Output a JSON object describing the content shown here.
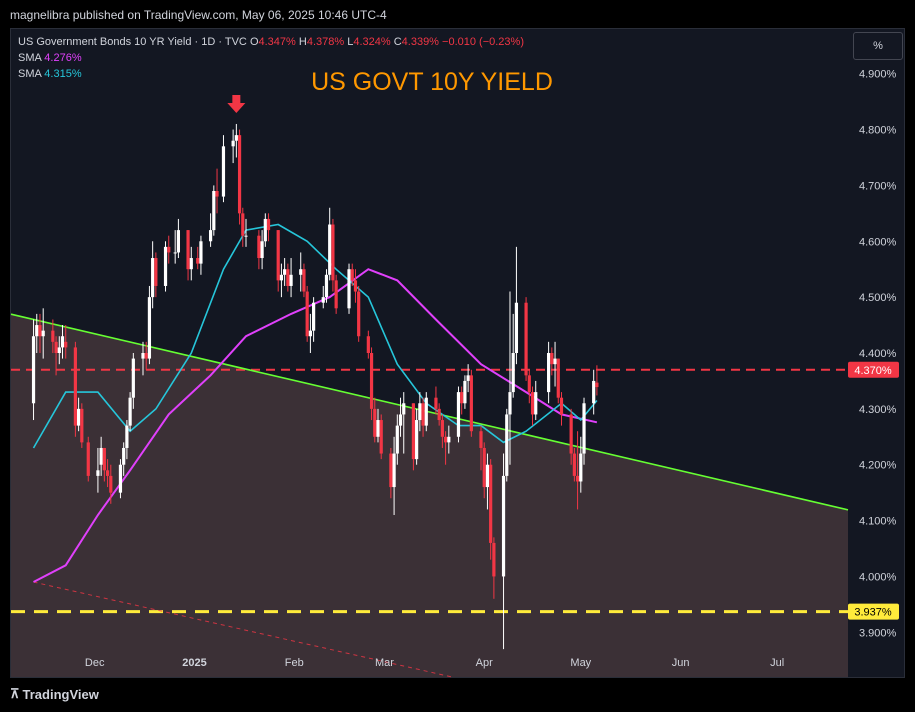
{
  "publish_bar": "magnelibra published on TradingView.com, May 06, 2025 10:46 UTC-4",
  "footer": {
    "brand": "TradingView"
  },
  "unit_label": "%",
  "legend": {
    "symbol": "US Government Bonds 10 YR Yield · 1D · TVC",
    "o_label": "O",
    "o_val": "4.347%",
    "h_label": "H",
    "h_val": "4.378%",
    "l_label": "L",
    "l_val": "4.324%",
    "c_label": "C",
    "c_val": "4.339%",
    "change": "−0.010 (−0.23%)",
    "sma1_label": "SMA",
    "sma1_val": "4.276%",
    "sma2_label": "SMA",
    "sma2_val": "4.315%"
  },
  "colors": {
    "up": "#ffffff",
    "down": "#f23645",
    "sma_slow": "#e040fb",
    "sma_fast": "#26c6da",
    "trendline": "#66ff33",
    "resistance": "#f23645",
    "support": "#ffeb3b",
    "title": "#ff9800",
    "shade": "#4a3a3e"
  },
  "chart_data": {
    "type": "candlestick",
    "title": "US GOVT 10Y YIELD",
    "y_axis": {
      "min": 3.82,
      "max": 4.98,
      "ticks": [
        "4.900%",
        "4.800%",
        "4.700%",
        "4.600%",
        "4.500%",
        "4.400%",
        "4.300%",
        "4.200%",
        "4.100%",
        "4.000%",
        "3.900%"
      ]
    },
    "x_axis": {
      "ticks": [
        "Dec",
        "2025",
        "Feb",
        "Mar",
        "Apr",
        "May",
        "Jun",
        "Jul"
      ]
    },
    "price_tags": [
      {
        "value": 4.37,
        "label": "4.370%",
        "color": "#f23645"
      },
      {
        "value": 3.937,
        "label": "3.937%",
        "color": "#ffeb3b"
      }
    ],
    "horizontal_lines": [
      {
        "value": 4.37,
        "style": "dashed",
        "color": "#f23645"
      },
      {
        "value": 3.937,
        "style": "dashed",
        "color": "#ffeb3b"
      }
    ],
    "trendline": {
      "from": {
        "date": "2024-11-12",
        "value": 4.46
      },
      "to": {
        "date": "2025-07-15",
        "value": 4.13
      }
    },
    "secondary_trendline": {
      "from": {
        "date": "2024-11-12",
        "value": 3.99
      },
      "to": {
        "date": "2025-03-22",
        "value": 3.82
      }
    },
    "marker": {
      "type": "down-arrow",
      "date": "2025-01-14",
      "color": "#f23645"
    },
    "shaded_zone": "below trendline",
    "grid": false,
    "candles": [
      [
        "2024-11-12",
        4.31,
        4.46,
        4.28,
        4.43
      ],
      [
        "2024-11-13",
        4.43,
        4.47,
        4.4,
        4.45
      ],
      [
        "2024-11-14",
        4.45,
        4.47,
        4.4,
        4.43
      ],
      [
        "2024-11-15",
        4.43,
        4.48,
        4.39,
        4.44
      ],
      [
        "2024-11-18",
        4.44,
        4.46,
        4.4,
        4.42
      ],
      [
        "2024-11-19",
        4.42,
        4.43,
        4.36,
        4.4
      ],
      [
        "2024-11-20",
        4.4,
        4.43,
        4.38,
        4.41
      ],
      [
        "2024-11-21",
        4.41,
        4.45,
        4.39,
        4.43
      ],
      [
        "2024-11-22",
        4.42,
        4.45,
        4.39,
        4.41
      ],
      [
        "2024-11-25",
        4.41,
        4.42,
        4.25,
        4.27
      ],
      [
        "2024-11-26",
        4.27,
        4.32,
        4.26,
        4.3
      ],
      [
        "2024-11-27",
        4.3,
        4.31,
        4.23,
        4.24
      ],
      [
        "2024-11-29",
        4.24,
        4.25,
        4.17,
        4.18
      ],
      [
        "2024-12-02",
        4.18,
        4.23,
        4.15,
        4.19
      ],
      [
        "2024-12-03",
        4.2,
        4.25,
        4.18,
        4.23
      ],
      [
        "2024-12-04",
        4.23,
        4.23,
        4.17,
        4.19
      ],
      [
        "2024-12-05",
        4.19,
        4.21,
        4.16,
        4.18
      ],
      [
        "2024-12-06",
        4.18,
        4.2,
        4.13,
        4.15
      ],
      [
        "2024-12-09",
        4.15,
        4.21,
        4.14,
        4.2
      ],
      [
        "2024-12-10",
        4.2,
        4.24,
        4.18,
        4.23
      ],
      [
        "2024-12-11",
        4.23,
        4.28,
        4.21,
        4.27
      ],
      [
        "2024-12-12",
        4.27,
        4.33,
        4.26,
        4.32
      ],
      [
        "2024-12-13",
        4.32,
        4.4,
        4.3,
        4.39
      ],
      [
        "2024-12-16",
        4.39,
        4.42,
        4.36,
        4.4
      ],
      [
        "2024-12-17",
        4.4,
        4.42,
        4.37,
        4.39
      ],
      [
        "2024-12-18",
        4.39,
        4.52,
        4.38,
        4.5
      ],
      [
        "2024-12-19",
        4.5,
        4.6,
        4.48,
        4.57
      ],
      [
        "2024-12-20",
        4.57,
        4.58,
        4.5,
        4.52
      ],
      [
        "2024-12-23",
        4.52,
        4.6,
        4.51,
        4.59
      ],
      [
        "2024-12-24",
        4.59,
        4.61,
        4.56,
        4.58
      ],
      [
        "2024-12-26",
        4.58,
        4.62,
        4.56,
        4.58
      ],
      [
        "2024-12-27",
        4.58,
        4.64,
        4.57,
        4.62
      ],
      [
        "2024-12-30",
        4.62,
        4.62,
        4.53,
        4.55
      ],
      [
        "2024-12-31",
        4.55,
        4.59,
        4.53,
        4.57
      ],
      [
        "2025-01-02",
        4.57,
        4.59,
        4.55,
        4.56
      ],
      [
        "2025-01-03",
        4.56,
        4.61,
        4.54,
        4.6
      ],
      [
        "2025-01-06",
        4.6,
        4.65,
        4.59,
        4.62
      ],
      [
        "2025-01-07",
        4.62,
        4.7,
        4.61,
        4.69
      ],
      [
        "2025-01-08",
        4.69,
        4.73,
        4.65,
        4.68
      ],
      [
        "2025-01-10",
        4.68,
        4.79,
        4.67,
        4.77
      ],
      [
        "2025-01-13",
        4.77,
        4.8,
        4.74,
        4.78
      ],
      [
        "2025-01-14",
        4.78,
        4.81,
        4.75,
        4.79
      ],
      [
        "2025-01-15",
        4.79,
        4.8,
        4.63,
        4.65
      ],
      [
        "2025-01-16",
        4.65,
        4.66,
        4.59,
        4.61
      ],
      [
        "2025-01-17",
        4.61,
        4.64,
        4.59,
        4.61
      ],
      [
        "2025-01-21",
        4.61,
        4.62,
        4.55,
        4.57
      ],
      [
        "2025-01-22",
        4.57,
        4.62,
        4.55,
        4.6
      ],
      [
        "2025-01-23",
        4.6,
        4.65,
        4.59,
        4.64
      ],
      [
        "2025-01-24",
        4.64,
        4.65,
        4.6,
        4.62
      ],
      [
        "2025-01-27",
        4.62,
        4.62,
        4.51,
        4.53
      ],
      [
        "2025-01-28",
        4.53,
        4.56,
        4.5,
        4.54
      ],
      [
        "2025-01-29",
        4.54,
        4.57,
        4.52,
        4.55
      ],
      [
        "2025-01-30",
        4.55,
        4.56,
        4.51,
        4.52
      ],
      [
        "2025-01-31",
        4.52,
        4.57,
        4.5,
        4.54
      ],
      [
        "2025-02-03",
        4.54,
        4.58,
        4.51,
        4.55
      ],
      [
        "2025-02-04",
        4.55,
        4.56,
        4.5,
        4.51
      ],
      [
        "2025-02-05",
        4.51,
        4.52,
        4.42,
        4.43
      ],
      [
        "2025-02-06",
        4.43,
        4.47,
        4.4,
        4.44
      ],
      [
        "2025-02-07",
        4.44,
        4.5,
        4.42,
        4.49
      ],
      [
        "2025-02-10",
        4.49,
        4.52,
        4.48,
        4.5
      ],
      [
        "2025-02-11",
        4.5,
        4.55,
        4.49,
        4.54
      ],
      [
        "2025-02-12",
        4.54,
        4.66,
        4.53,
        4.63
      ],
      [
        "2025-02-13",
        4.63,
        4.64,
        4.51,
        4.53
      ],
      [
        "2025-02-14",
        4.53,
        4.54,
        4.47,
        4.48
      ],
      [
        "2025-02-18",
        4.48,
        4.56,
        4.47,
        4.55
      ],
      [
        "2025-02-19",
        4.55,
        4.56,
        4.52,
        4.53
      ],
      [
        "2025-02-20",
        4.53,
        4.55,
        4.49,
        4.51
      ],
      [
        "2025-02-21",
        4.51,
        4.52,
        4.42,
        4.43
      ],
      [
        "2025-02-24",
        4.43,
        4.44,
        4.39,
        4.4
      ],
      [
        "2025-02-25",
        4.4,
        4.41,
        4.28,
        4.3
      ],
      [
        "2025-02-26",
        4.3,
        4.32,
        4.24,
        4.25
      ],
      [
        "2025-02-27",
        4.25,
        4.3,
        4.24,
        4.28
      ],
      [
        "2025-02-28",
        4.28,
        4.29,
        4.21,
        4.22
      ],
      [
        "2025-03-03",
        4.22,
        4.23,
        4.14,
        4.16
      ],
      [
        "2025-03-04",
        4.16,
        4.25,
        4.11,
        4.22
      ],
      [
        "2025-03-05",
        4.22,
        4.29,
        4.2,
        4.27
      ],
      [
        "2025-03-06",
        4.27,
        4.32,
        4.25,
        4.29
      ],
      [
        "2025-03-07",
        4.29,
        4.33,
        4.22,
        4.31
      ],
      [
        "2025-03-10",
        4.31,
        4.31,
        4.19,
        4.21
      ],
      [
        "2025-03-11",
        4.21,
        4.3,
        4.2,
        4.28
      ],
      [
        "2025-03-12",
        4.28,
        4.33,
        4.26,
        4.31
      ],
      [
        "2025-03-13",
        4.31,
        4.32,
        4.25,
        4.27
      ],
      [
        "2025-03-14",
        4.27,
        4.33,
        4.26,
        4.32
      ],
      [
        "2025-03-17",
        4.32,
        4.34,
        4.29,
        4.3
      ],
      [
        "2025-03-18",
        4.3,
        4.31,
        4.27,
        4.28
      ],
      [
        "2025-03-19",
        4.28,
        4.29,
        4.23,
        4.25
      ],
      [
        "2025-03-20",
        4.25,
        4.26,
        4.2,
        4.24
      ],
      [
        "2025-03-21",
        4.24,
        4.27,
        4.22,
        4.25
      ],
      [
        "2025-03-24",
        4.25,
        4.34,
        4.24,
        4.33
      ],
      [
        "2025-03-25",
        4.33,
        4.34,
        4.29,
        4.31
      ],
      [
        "2025-03-26",
        4.31,
        4.36,
        4.3,
        4.35
      ],
      [
        "2025-03-27",
        4.35,
        4.38,
        4.33,
        4.36
      ],
      [
        "2025-03-28",
        4.36,
        4.37,
        4.25,
        4.26
      ],
      [
        "2025-03-31",
        4.26,
        4.27,
        4.19,
        4.23
      ],
      [
        "2025-04-01",
        4.23,
        4.24,
        4.14,
        4.16
      ],
      [
        "2025-04-02",
        4.16,
        4.22,
        4.12,
        4.2
      ],
      [
        "2025-04-03",
        4.2,
        4.21,
        4.03,
        4.06
      ],
      [
        "2025-04-04",
        4.06,
        4.07,
        3.96,
        4.0
      ],
      [
        "2025-04-07",
        4.0,
        4.22,
        3.87,
        4.18
      ],
      [
        "2025-04-08",
        4.18,
        4.3,
        4.17,
        4.29
      ],
      [
        "2025-04-09",
        4.29,
        4.51,
        4.2,
        4.33
      ],
      [
        "2025-04-10",
        4.33,
        4.47,
        4.32,
        4.4
      ],
      [
        "2025-04-11",
        4.4,
        4.59,
        4.38,
        4.49
      ],
      [
        "2025-04-14",
        4.49,
        4.5,
        4.35,
        4.36
      ],
      [
        "2025-04-15",
        4.36,
        4.37,
        4.31,
        4.33
      ],
      [
        "2025-04-16",
        4.33,
        4.34,
        4.27,
        4.29
      ],
      [
        "2025-04-17",
        4.29,
        4.35,
        4.28,
        4.33
      ],
      [
        "2025-04-21",
        4.33,
        4.42,
        4.31,
        4.4
      ],
      [
        "2025-04-22",
        4.4,
        4.41,
        4.36,
        4.38
      ],
      [
        "2025-04-23",
        4.38,
        4.42,
        4.34,
        4.39
      ],
      [
        "2025-04-24",
        4.39,
        4.39,
        4.31,
        4.32
      ],
      [
        "2025-04-25",
        4.32,
        4.33,
        4.27,
        4.29
      ],
      [
        "2025-04-28",
        4.29,
        4.3,
        4.2,
        4.22
      ],
      [
        "2025-04-29",
        4.22,
        4.23,
        4.17,
        4.18
      ],
      [
        "2025-04-30",
        4.18,
        4.26,
        4.12,
        4.17
      ],
      [
        "2025-05-01",
        4.17,
        4.25,
        4.15,
        4.22
      ],
      [
        "2025-05-02",
        4.22,
        4.32,
        4.2,
        4.31
      ],
      [
        "2025-05-05",
        4.31,
        4.37,
        4.29,
        4.35
      ],
      [
        "2025-05-06",
        4.347,
        4.378,
        4.324,
        4.339
      ]
    ],
    "sma_fast": {
      "name": "SMA",
      "last": 4.315,
      "points": [
        [
          "2024-11-12",
          4.23
        ],
        [
          "2024-11-22",
          4.33
        ],
        [
          "2024-12-02",
          4.33
        ],
        [
          "2024-12-12",
          4.26
        ],
        [
          "2024-12-20",
          4.3
        ],
        [
          "2024-12-31",
          4.4
        ],
        [
          "2025-01-10",
          4.55
        ],
        [
          "2025-01-17",
          4.62
        ],
        [
          "2025-01-27",
          4.63
        ],
        [
          "2025-02-05",
          4.6
        ],
        [
          "2025-02-14",
          4.55
        ],
        [
          "2025-02-24",
          4.5
        ],
        [
          "2025-03-05",
          4.38
        ],
        [
          "2025-03-14",
          4.31
        ],
        [
          "2025-03-24",
          4.27
        ],
        [
          "2025-03-31",
          4.27
        ],
        [
          "2025-04-07",
          4.24
        ],
        [
          "2025-04-14",
          4.26
        ],
        [
          "2025-04-25",
          4.31
        ],
        [
          "2025-05-01",
          4.28
        ],
        [
          "2025-05-06",
          4.315
        ]
      ]
    },
    "sma_slow": {
      "name": "SMA",
      "last": 4.276,
      "points": [
        [
          "2024-11-12",
          3.99
        ],
        [
          "2024-11-22",
          4.02
        ],
        [
          "2024-12-02",
          4.11
        ],
        [
          "2024-12-12",
          4.19
        ],
        [
          "2024-12-24",
          4.29
        ],
        [
          "2025-01-06",
          4.36
        ],
        [
          "2025-01-17",
          4.43
        ],
        [
          "2025-01-31",
          4.47
        ],
        [
          "2025-02-12",
          4.5
        ],
        [
          "2025-02-24",
          4.55
        ],
        [
          "2025-03-05",
          4.53
        ],
        [
          "2025-03-17",
          4.46
        ],
        [
          "2025-03-31",
          4.38
        ],
        [
          "2025-04-14",
          4.33
        ],
        [
          "2025-04-25",
          4.29
        ],
        [
          "2025-05-06",
          4.276
        ]
      ]
    }
  }
}
